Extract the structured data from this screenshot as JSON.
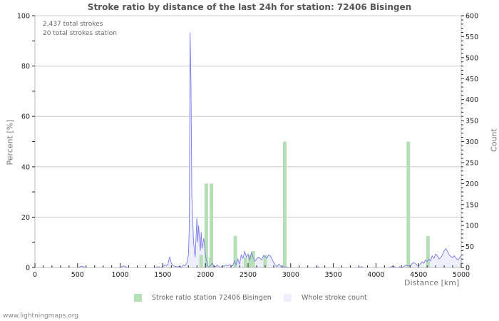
{
  "title": "Stroke ratio by distance of the last 24h for station: 72406 Bisingen",
  "info": {
    "total_strokes": "2,437 total strokes",
    "station_strokes": "20 total strokes station"
  },
  "axes": {
    "y_left_label": "Percent   [%]",
    "y_right_label": "Count",
    "x_label": "Distance   [km]"
  },
  "legend": {
    "ratio_label": "Stroke ratio station 72406 Bisingen",
    "count_label": "Whole stroke count"
  },
  "watermark": "www.lightningmaps.org",
  "colors": {
    "bar": "#b5e0b5",
    "line": "#7b7bea",
    "area": "#eeeefc",
    "grid": "#cccccc"
  },
  "chart_data": {
    "type": "bar+area",
    "title": "Stroke ratio by distance of the last 24h for station: 72406 Bisingen",
    "xlabel": "Distance [km]",
    "ylabel": "Percent [%]",
    "y2label": "Count",
    "xlim": [
      0,
      5000
    ],
    "ylim": [
      0,
      100
    ],
    "y2lim": [
      0,
      600
    ],
    "x_ticks": [
      0,
      500,
      1000,
      1500,
      2000,
      2500,
      3000,
      3500,
      4000,
      4500,
      5000
    ],
    "y_ticks": [
      0,
      20,
      40,
      60,
      80,
      100
    ],
    "y2_ticks": [
      0,
      50,
      100,
      150,
      200,
      250,
      300,
      350,
      400,
      450,
      500,
      550,
      600
    ],
    "grid": true,
    "legend_position": "bottom",
    "series": [
      {
        "name": "Stroke ratio station 72406 Bisingen",
        "type": "bar",
        "axis": "left",
        "x": [
          1950,
          2010,
          2060,
          2070,
          2350,
          2470,
          2520,
          2560,
          2700,
          2930,
          4380,
          4610
        ],
        "values": [
          5,
          33.3,
          4,
          33.3,
          12.5,
          4,
          5,
          6.5,
          5,
          50,
          50,
          12.5
        ]
      },
      {
        "name": "Whole stroke count",
        "type": "area",
        "axis": "right",
        "x": [
          0,
          500,
          550,
          600,
          1000,
          1040,
          1060,
          1100,
          1400,
          1450,
          1480,
          1500,
          1520,
          1540,
          1560,
          1580,
          1600,
          1620,
          1640,
          1660,
          1680,
          1700,
          1720,
          1740,
          1760,
          1780,
          1800,
          1810,
          1820,
          1830,
          1840,
          1860,
          1880,
          1900,
          1910,
          1920,
          1940,
          1950,
          1960,
          1980,
          2000,
          2020,
          2040,
          2060,
          2080,
          2100,
          2120,
          2140,
          2160,
          2180,
          2200,
          2220,
          2240,
          2260,
          2280,
          2300,
          2320,
          2340,
          2360,
          2380,
          2400,
          2420,
          2440,
          2460,
          2480,
          2500,
          2520,
          2540,
          2560,
          2580,
          2600,
          2620,
          2640,
          2660,
          2680,
          2700,
          2720,
          2740,
          2760,
          2780,
          2800,
          2820,
          2840,
          2860,
          2880,
          2900,
          2920,
          3000,
          3300,
          3320,
          3340,
          3500,
          3800,
          3830,
          3860,
          4150,
          4200,
          4250,
          4280,
          4300,
          4350,
          4400,
          4420,
          4440,
          4460,
          4480,
          4500,
          4520,
          4540,
          4560,
          4580,
          4600,
          4620,
          4640,
          4660,
          4680,
          4700,
          4720,
          4740,
          4760,
          4780,
          4800,
          4820,
          4840,
          4860,
          4880,
          4900,
          4920,
          4940,
          4960,
          4980,
          5000
        ],
        "values": [
          0,
          0,
          3,
          0,
          0,
          4,
          2,
          0,
          0,
          2,
          0,
          3,
          6,
          4,
          8,
          26,
          10,
          5,
          3,
          2,
          2,
          3,
          0,
          6,
          4,
          10,
          30,
          95,
          560,
          440,
          170,
          60,
          25,
          118,
          60,
          100,
          40,
          85,
          45,
          70,
          30,
          8,
          0,
          5,
          10,
          3,
          2,
          6,
          2,
          0,
          4,
          3,
          6,
          4,
          7,
          5,
          4,
          16,
          6,
          20,
          8,
          30,
          22,
          38,
          25,
          32,
          18,
          36,
          24,
          15,
          20,
          25,
          22,
          18,
          28,
          26,
          22,
          30,
          28,
          20,
          12,
          6,
          2,
          8,
          4,
          0,
          2,
          0,
          0,
          2,
          0,
          0,
          0,
          2,
          0,
          0,
          3,
          0,
          2,
          0,
          5,
          3,
          8,
          12,
          10,
          6,
          4,
          8,
          14,
          10,
          18,
          14,
          20,
          16,
          28,
          22,
          32,
          28,
          20,
          24,
          30,
          40,
          45,
          38,
          30,
          26,
          24,
          28,
          22,
          18,
          22,
          30
        ]
      }
    ]
  }
}
